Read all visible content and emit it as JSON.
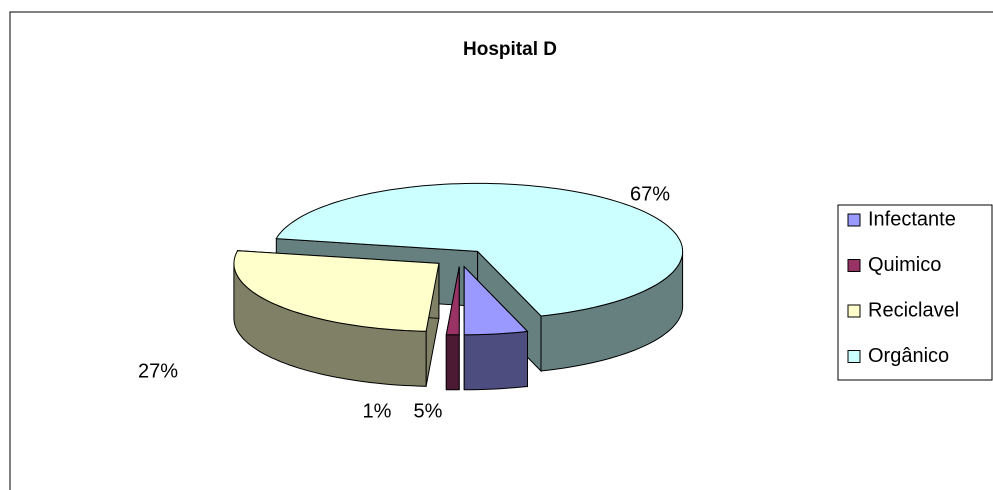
{
  "chart_data": {
    "type": "pie",
    "title": "Hospital D",
    "categories": [
      "Infectante",
      "Quimico",
      "Reciclavel",
      "Orgânico"
    ],
    "values": [
      5,
      1,
      27,
      67
    ],
    "value_labels": [
      "5%",
      "1%",
      "27%",
      "67%"
    ],
    "colors": [
      "#9999ff",
      "#993366",
      "#ffffcc",
      "#ccffff"
    ],
    "legend": "right"
  }
}
